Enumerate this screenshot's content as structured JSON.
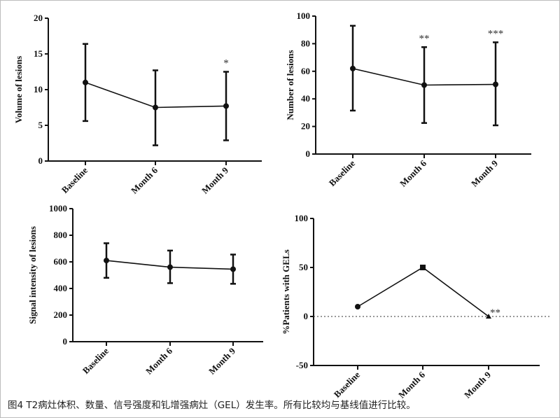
{
  "caption": "图4 T2病灶体积、数量、信号强度和钆增强病灶（GEL）发生率。所有比较均与基线值进行比较。",
  "chart_data": [
    {
      "type": "line",
      "categories": [
        "Baseline",
        "Month 6",
        "Month 9"
      ],
      "ylabel": "Volume of  lesions",
      "ylim": [
        0,
        20
      ],
      "yticks": [
        0,
        5,
        10,
        15,
        20
      ],
      "series": [
        {
          "values": [
            11.0,
            7.5,
            7.7
          ],
          "error_low": [
            5.6,
            2.2,
            2.9
          ],
          "error_high": [
            16.4,
            12.7,
            12.5
          ],
          "marker": "circle"
        }
      ],
      "annotations": [
        "",
        "",
        "*"
      ]
    },
    {
      "type": "line",
      "categories": [
        "Baseline",
        "Month 6",
        "Month 9"
      ],
      "ylabel": "Number of  lesions",
      "ylim": [
        0,
        100
      ],
      "yticks": [
        0,
        20,
        40,
        60,
        80,
        100
      ],
      "series": [
        {
          "values": [
            62,
            50,
            50.5
          ],
          "error_low": [
            31.5,
            22.5,
            20.8
          ],
          "error_high": [
            93,
            77.5,
            81
          ],
          "marker": "circle"
        }
      ],
      "annotations": [
        "",
        "**",
        "***"
      ]
    },
    {
      "type": "line",
      "categories": [
        "Baseline",
        "Month 6",
        "Month 9"
      ],
      "ylabel": "Signal intensity of lesions",
      "ylim": [
        0,
        1000
      ],
      "yticks": [
        0,
        200,
        400,
        600,
        800,
        1000
      ],
      "series": [
        {
          "values": [
            610,
            560,
            545
          ],
          "error_low": [
            480,
            440,
            435
          ],
          "error_high": [
            740,
            685,
            655
          ],
          "marker": "circle"
        }
      ],
      "annotations": [
        "",
        "",
        ""
      ]
    },
    {
      "type": "line",
      "categories": [
        "Baseline",
        "Month 6",
        "Month 9"
      ],
      "ylabel": "%Patients with GELs",
      "ylim": [
        -50,
        100
      ],
      "yticks": [
        -50,
        0,
        50,
        100
      ],
      "reference_line": {
        "y": 0,
        "style": "dotted"
      },
      "series": [
        {
          "values": [
            10,
            50,
            0
          ],
          "markers": [
            "circle",
            "square",
            "triangle"
          ]
        }
      ],
      "annotations": [
        "",
        "",
        "**"
      ]
    }
  ]
}
